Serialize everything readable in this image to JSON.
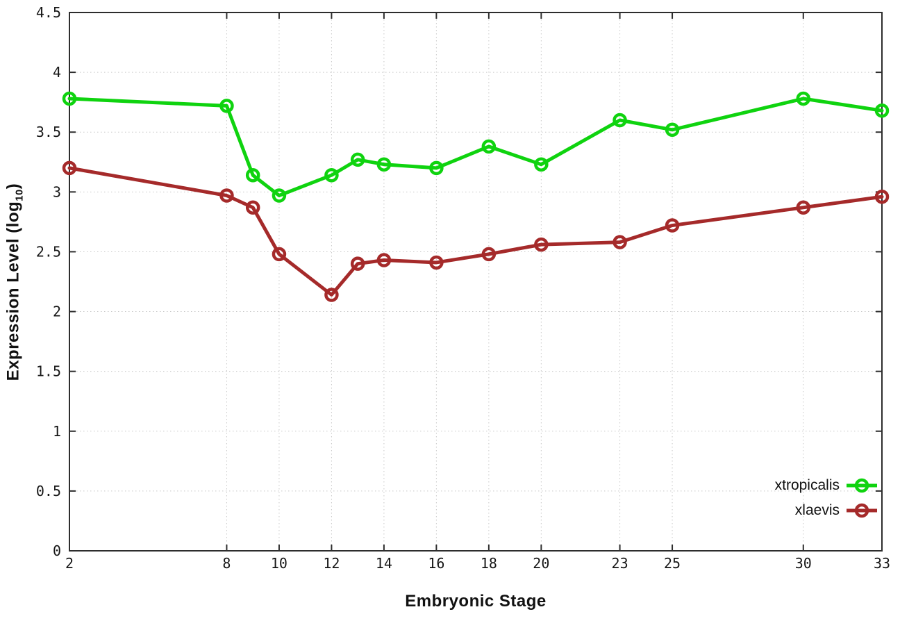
{
  "chart_data": {
    "type": "line",
    "xlabel": "Embryonic Stage",
    "ylabel": {
      "main": "Expression Level (log",
      "sub": "10",
      "suffix": ")"
    },
    "x": [
      2,
      8,
      9,
      10,
      12,
      13,
      14,
      16,
      18,
      20,
      23,
      25,
      30,
      33
    ],
    "xlim": [
      2,
      33
    ],
    "ylim": [
      0,
      4.5
    ],
    "xticks": [
      2,
      8,
      10,
      12,
      14,
      16,
      18,
      20,
      23,
      25,
      30,
      33
    ],
    "xtick_labels": [
      "2",
      "8",
      "10",
      "12",
      "14",
      "16",
      "18",
      "20",
      "23",
      "25",
      "30",
      "33"
    ],
    "yticks": [
      0,
      0.5,
      1,
      1.5,
      2,
      2.5,
      3,
      3.5,
      4,
      4.5
    ],
    "ytick_labels": [
      "0",
      "0.5",
      "1",
      "1.5",
      "2",
      "2.5",
      "3",
      "3.5",
      "4",
      "4.5"
    ],
    "grid": true,
    "legend_position": "bottom-right",
    "series": [
      {
        "name": "xtropicalis",
        "color": "#0fd30f",
        "marker": "open-circle",
        "values": [
          3.78,
          3.72,
          3.14,
          2.97,
          3.14,
          3.27,
          3.23,
          3.2,
          3.38,
          3.23,
          3.6,
          3.52,
          3.78,
          3.68
        ]
      },
      {
        "name": "xlaevis",
        "color": "#a52a2a",
        "marker": "open-circle",
        "values": [
          3.2,
          2.97,
          2.87,
          2.48,
          2.14,
          2.4,
          2.43,
          2.41,
          2.48,
          2.56,
          2.58,
          2.72,
          2.87,
          2.96
        ]
      }
    ],
    "colors": {
      "border": "#2d2d2d",
      "grid": "#c8c8c8",
      "tick_text": "#161616",
      "background": "#ffffff"
    }
  }
}
